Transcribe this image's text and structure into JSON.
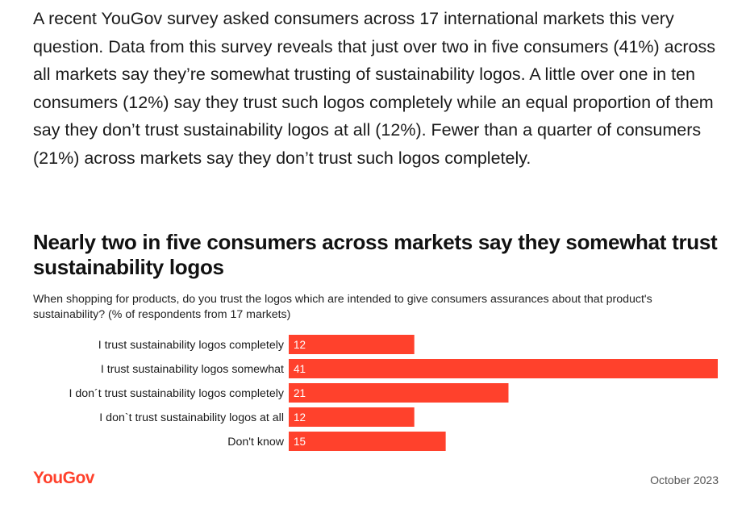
{
  "article": {
    "paragraph": "A recent YouGov survey asked consumers across 17 international markets this very question. Data from this survey reveals that just over two in five consumers (41%) across all markets say they’re somewhat trusting of sustainability logos. A little over one in ten consumers (12%) say they trust such logos completely while an equal proportion of them say they don’t trust sustainability logos at all (12%). Fewer than a quarter of consumers (21%) across markets say they don’t trust such logos completely."
  },
  "chart_data": {
    "type": "bar",
    "orientation": "horizontal",
    "title": "Nearly two in five consumers across markets say they somewhat trust sustainability logos",
    "subtitle": "When shopping for products, do you trust the logos which are intended to give consumers assurances about that product's sustainability? (% of respondents from 17 markets)",
    "categories": [
      "I trust sustainability logos completely",
      "I trust sustainability logos somewhat",
      "I don´t trust sustainability logos completely",
      "I don`t trust sustainability logos at all",
      "Don't know"
    ],
    "values": [
      12,
      41,
      21,
      12,
      15
    ],
    "xlim": [
      0,
      41
    ],
    "bar_color": "#ff412c",
    "data_labels": true,
    "grid": false,
    "legend": "none"
  },
  "footer": {
    "brand": "YouGov",
    "brand_color": "#ff412c",
    "date": "October 2023"
  }
}
